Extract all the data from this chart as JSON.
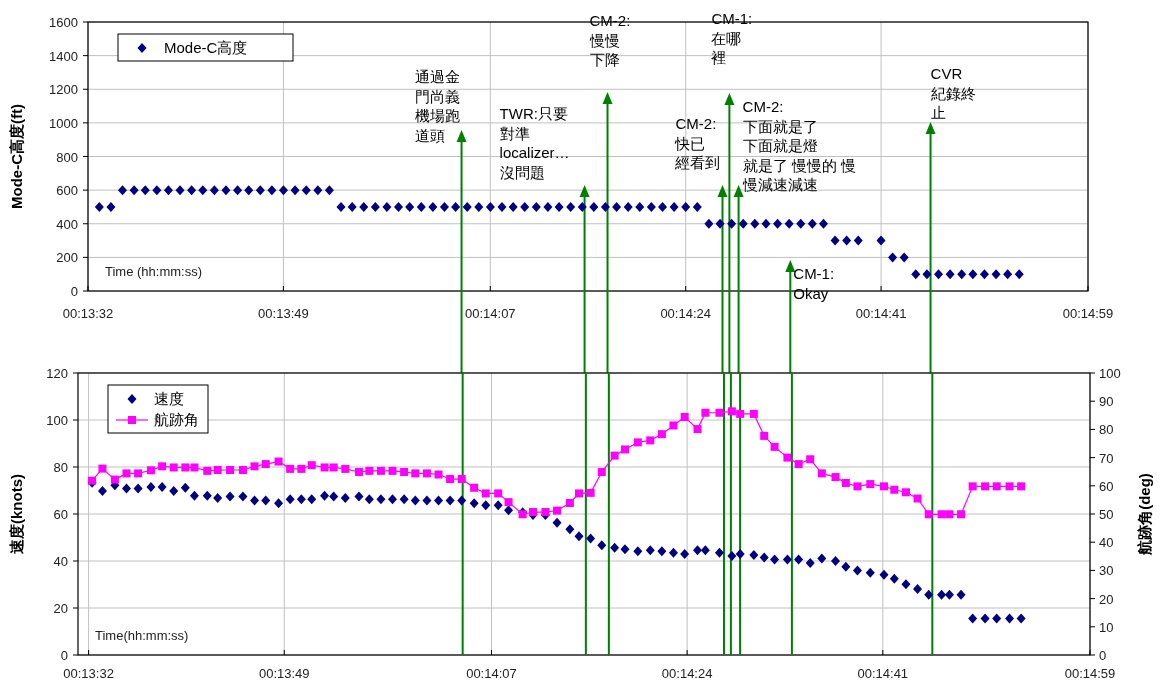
{
  "chart_data": [
    {
      "type": "scatter",
      "ylabel": "Mode-C高度(ft)",
      "xlabel": "Time (hh:mm:ss)",
      "legend": "top left",
      "marker": "diamond",
      "grid": true,
      "xlim": [
        0.225556,
        0.249722
      ],
      "xticks": [
        {
          "value": 0.225556,
          "label": "00:13:32"
        },
        {
          "value": 0.230278,
          "label": "00:13:49"
        },
        {
          "value": 0.235278,
          "label": "00:14:07"
        },
        {
          "value": 0.24,
          "label": "00:14:24"
        },
        {
          "value": 0.244722,
          "label": "00:14:41"
        },
        {
          "value": 0.249722,
          "label": "00:14:59"
        }
      ],
      "ylim": [
        0,
        1600
      ],
      "yticks": [
        0,
        200,
        400,
        600,
        800,
        1000,
        1200,
        1400,
        1600
      ],
      "x": [
        0.22583,
        0.22611,
        0.22639,
        0.22667,
        0.22694,
        0.22722,
        0.2275,
        0.22778,
        0.22806,
        0.22833,
        0.22861,
        0.22889,
        0.22917,
        0.22944,
        0.22972,
        0.23,
        0.23028,
        0.23056,
        0.23083,
        0.23111,
        0.23139,
        0.23167,
        0.23194,
        0.23222,
        0.2325,
        0.23278,
        0.23306,
        0.23333,
        0.23361,
        0.23389,
        0.23417,
        0.23444,
        0.23472,
        0.235,
        0.23528,
        0.23556,
        0.23583,
        0.23611,
        0.23639,
        0.23667,
        0.23694,
        0.23722,
        0.2375,
        0.23778,
        0.23806,
        0.23833,
        0.23861,
        0.23889,
        0.23917,
        0.23944,
        0.23972,
        0.24,
        0.24028,
        0.24056,
        0.24083,
        0.24111,
        0.24139,
        0.24167,
        0.24194,
        0.24222,
        0.2425,
        0.24278,
        0.24306,
        0.24333,
        0.24361,
        0.24389,
        0.24417,
        0.24472,
        0.245,
        0.24528,
        0.24556,
        0.24583,
        0.24611,
        0.24639,
        0.24667,
        0.24694,
        0.24722,
        0.2475,
        0.24778,
        0.24806
      ],
      "series": [
        {
          "name": "Mode-C高度",
          "color": "#000080",
          "values": [
            500,
            500,
            600,
            600,
            600,
            600,
            600,
            600,
            600,
            600,
            600,
            600,
            600,
            600,
            600,
            600,
            600,
            600,
            600,
            600,
            600,
            500,
            500,
            500,
            500,
            500,
            500,
            500,
            500,
            500,
            500,
            500,
            500,
            500,
            500,
            500,
            500,
            500,
            500,
            500,
            500,
            500,
            500,
            500,
            500,
            500,
            500,
            500,
            500,
            500,
            500,
            500,
            500,
            400,
            400,
            400,
            400,
            400,
            400,
            400,
            400,
            400,
            400,
            400,
            300,
            300,
            300,
            300,
            200,
            200,
            100,
            100,
            100,
            100,
            100,
            100,
            100,
            100,
            100,
            100
          ]
        }
      ],
      "ref_lines": [
        {
          "axis": "x",
          "value": 0.234583,
          "color": "#008000",
          "label": "通過金門尚義機場跑道頭"
        },
        {
          "axis": "x",
          "value": 0.237556,
          "color": "#008000",
          "label": "TWR:只要對準localizer…沒問題"
        },
        {
          "axis": "x",
          "value": 0.238111,
          "color": "#008000",
          "label": "CM-2:慢慢下降"
        },
        {
          "axis": "x",
          "value": 0.240889,
          "color": "#008000",
          "label": "CM-2:快已經看到"
        },
        {
          "axis": "x",
          "value": 0.241056,
          "color": "#008000",
          "label": "CM-1:在哪裡"
        },
        {
          "axis": "x",
          "value": 0.241278,
          "color": "#008000",
          "label": "CM-2:下面就是了下面就是燈就是了 慢慢的 慢慢減速減速"
        },
        {
          "axis": "x",
          "value": 0.242528,
          "color": "#008000",
          "label": "CM-1:Okay"
        },
        {
          "axis": "x",
          "value": 0.245917,
          "color": "#008000",
          "label": "CVR紀錄終止"
        }
      ]
    },
    {
      "type": "scatter",
      "ylabel": "速度(knots)",
      "y2label": "航跡角(deg)",
      "xlabel": "Time(hh:mm:ss)",
      "legend": "top left",
      "grid": true,
      "xlim": [
        0.2253,
        0.249722
      ],
      "xticks": [
        {
          "value": 0.225556,
          "label": "00:13:32"
        },
        {
          "value": 0.230278,
          "label": "00:13:49"
        },
        {
          "value": 0.235278,
          "label": "00:14:07"
        },
        {
          "value": 0.24,
          "label": "00:14:24"
        },
        {
          "value": 0.244722,
          "label": "00:14:41"
        },
        {
          "value": 0.249722,
          "label": "00:14:59"
        }
      ],
      "ylim": [
        0,
        120
      ],
      "yticks": [
        0,
        20,
        40,
        60,
        80,
        100,
        120
      ],
      "y2lim": [
        0,
        100
      ],
      "y2ticks": [
        0,
        10,
        20,
        30,
        40,
        50,
        60,
        70,
        80,
        90,
        100
      ],
      "x": [
        0.22564,
        0.22589,
        0.22619,
        0.22647,
        0.22675,
        0.22706,
        0.22733,
        0.22761,
        0.22789,
        0.22811,
        0.22842,
        0.22867,
        0.22897,
        0.22928,
        0.22956,
        0.22983,
        0.23014,
        0.23042,
        0.23069,
        0.23094,
        0.23125,
        0.23147,
        0.23175,
        0.23208,
        0.23233,
        0.23261,
        0.23289,
        0.23317,
        0.23344,
        0.23372,
        0.234,
        0.23428,
        0.23456,
        0.23486,
        0.23514,
        0.23544,
        0.23569,
        0.23603,
        0.23628,
        0.23658,
        0.23686,
        0.23717,
        0.23739,
        0.23767,
        0.23794,
        0.23825,
        0.2385,
        0.23881,
        0.23911,
        0.23939,
        0.23967,
        0.23994,
        0.24025,
        0.24044,
        0.24078,
        0.24108,
        0.24128,
        0.24161,
        0.24186,
        0.24211,
        0.24242,
        0.24269,
        0.24297,
        0.24325,
        0.24358,
        0.24383,
        0.24411,
        0.24442,
        0.24475,
        0.245,
        0.24528,
        0.24556,
        0.24583,
        0.24614,
        0.24633,
        0.24661,
        0.24689,
        0.24719,
        0.24747,
        0.24778,
        0.24806
      ],
      "series": [
        {
          "name": "速度",
          "marker": "diamond",
          "color": "#000080",
          "values": [
            73.3,
            69.8,
            72.2,
            70.9,
            70.9,
            71.5,
            71.5,
            69.8,
            71.2,
            67.8,
            67.8,
            66.8,
            67.4,
            67.4,
            65.7,
            65.7,
            64.6,
            66.3,
            66.3,
            66.3,
            67.8,
            67.4,
            66.8,
            67.4,
            66.3,
            66.3,
            66.3,
            66.3,
            65.7,
            65.7,
            65.7,
            65.7,
            65.7,
            64.6,
            63.7,
            63.7,
            61.6,
            60.7,
            59.6,
            59.6,
            56.3,
            53.5,
            50.5,
            49.6,
            46.7,
            45.6,
            45.0,
            44.1,
            44.6,
            44.1,
            43.5,
            43.0,
            44.6,
            44.6,
            43.5,
            42.1,
            43.0,
            42.6,
            41.5,
            40.6,
            40.6,
            40.6,
            39.1,
            41.1,
            40.0,
            37.6,
            36.0,
            35.0,
            34.1,
            32.5,
            30.1,
            28.1,
            25.6,
            25.6,
            25.6,
            25.6,
            15.5,
            15.5,
            15.5,
            15.5,
            15.5
          ]
        },
        {
          "name": "航跡角",
          "type": "line",
          "marker": "square",
          "axis": "y2",
          "color": "#ff00ff",
          "values": [
            61.8,
            66.1,
            62.2,
            64.4,
            64.4,
            65.5,
            66.9,
            66.5,
            66.5,
            66.5,
            65.3,
            65.6,
            65.6,
            65.6,
            66.9,
            67.7,
            68.6,
            66.0,
            66.0,
            67.3,
            66.5,
            66.5,
            66.0,
            64.9,
            65.3,
            65.3,
            65.3,
            64.9,
            64.4,
            64.4,
            64.0,
            62.4,
            62.4,
            59.3,
            57.3,
            57.3,
            54.2,
            49.9,
            50.7,
            50.7,
            51.2,
            53.9,
            57.3,
            57.5,
            64.9,
            70.7,
            72.9,
            75.4,
            76.1,
            78.3,
            81.4,
            84.4,
            80.1,
            85.9,
            85.9,
            86.4,
            85.5,
            85.5,
            77.7,
            73.8,
            70.0,
            67.7,
            69.4,
            64.4,
            63.1,
            61.0,
            59.8,
            60.6,
            59.8,
            58.6,
            57.7,
            55.5,
            49.9,
            49.9,
            49.9,
            49.9,
            59.8,
            59.8,
            59.8,
            59.8,
            59.8
          ]
        }
      ],
      "ref_lines": [
        {
          "axis": "x",
          "value": 0.234583,
          "color": "#008000"
        },
        {
          "axis": "x",
          "value": 0.237556,
          "color": "#008000"
        },
        {
          "axis": "x",
          "value": 0.238111,
          "color": "#008000"
        },
        {
          "axis": "x",
          "value": 0.240889,
          "color": "#008000"
        },
        {
          "axis": "x",
          "value": 0.241056,
          "color": "#008000"
        },
        {
          "axis": "x",
          "value": 0.241278,
          "color": "#008000"
        },
        {
          "axis": "x",
          "value": 0.242528,
          "color": "#008000"
        },
        {
          "axis": "x",
          "value": 0.245917,
          "color": "#008000"
        }
      ]
    }
  ]
}
